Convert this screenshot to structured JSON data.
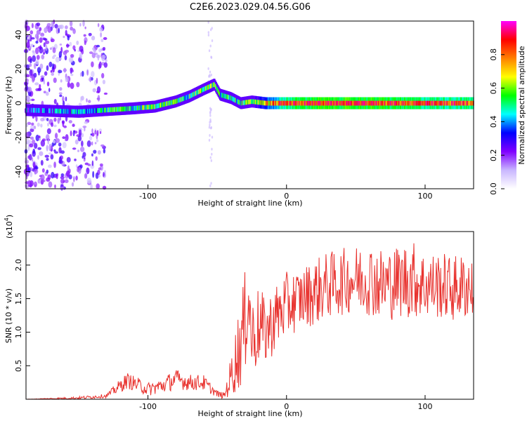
{
  "figure_title": "C2E6.2023.029.04.56.G06",
  "chart_data": [
    {
      "type": "heatmap",
      "xlabel": "Height of straight line (km)",
      "ylabel": "Frequency (Hz)",
      "xlim": [
        -188,
        135
      ],
      "ylim": [
        -50,
        48
      ],
      "x_ticks": [
        -100,
        0,
        100
      ],
      "x_tick_labels": [
        "-100",
        "0",
        "100"
      ],
      "y_ticks": [
        -40,
        -20,
        0,
        20,
        40
      ],
      "y_tick_labels": [
        "-40",
        "-20",
        "0",
        "20",
        "40"
      ],
      "colorbar": {
        "label": "Normalized spectral amplitude",
        "range": [
          0,
          1
        ],
        "ticks": [
          0.0,
          0.2,
          0.4,
          0.6,
          0.8
        ],
        "tick_labels": [
          "0.0",
          "0.2",
          "0.4",
          "0.6",
          "0.8"
        ],
        "colors": [
          "#ffffff",
          "#c9b6ff",
          "#8000ff",
          "#0000ff",
          "#00ffff",
          "#00ff00",
          "#ffff00",
          "#ff8000",
          "#ff0000",
          "#ff00ff"
        ]
      },
      "signal_track": {
        "x": [
          -188,
          -150,
          -130,
          -110,
          -95,
          -80,
          -70,
          -60,
          -52,
          -48,
          -40,
          -33,
          -25,
          -15,
          0,
          20,
          60,
          100,
          135
        ],
        "frequency": [
          -4,
          -5,
          -4,
          -3,
          -2,
          1,
          4,
          8,
          11,
          5,
          3,
          0,
          1,
          0,
          0,
          0,
          0,
          0,
          0
        ],
        "amplitude": [
          0.3,
          0.4,
          0.5,
          0.5,
          0.55,
          0.5,
          0.5,
          0.55,
          0.55,
          0.45,
          0.5,
          0.5,
          0.55,
          0.7,
          0.85,
          0.9,
          0.9,
          0.85,
          0.85
        ]
      },
      "grid": false
    },
    {
      "type": "line",
      "xlabel": "Height of straight line (km)",
      "ylabel": "SNR (10 * v/v)",
      "y_multiplier_label": "(x10",
      "y_multiplier_exponent": "4",
      "xlim": [
        -188,
        135
      ],
      "ylim": [
        0,
        2.5
      ],
      "x_ticks": [
        -100,
        0,
        100
      ],
      "x_tick_labels": [
        "-100",
        "0",
        "100"
      ],
      "y_ticks": [
        0.5,
        1.0,
        1.5,
        2.0
      ],
      "y_tick_labels": [
        "0.5",
        "1.0",
        "1.5",
        "2.0"
      ],
      "series": [
        {
          "color": "#e8322e",
          "x": [
            -188,
            -150,
            -130,
            -120,
            -115,
            -100,
            -90,
            -80,
            -70,
            -60,
            -50,
            -45,
            -40,
            -35,
            -30,
            -28,
            -25,
            -20,
            -15,
            -10,
            -5,
            0,
            10,
            20,
            30,
            40,
            50,
            60,
            70,
            80,
            90,
            100,
            110,
            120,
            135
          ],
          "values": [
            0.0,
            0.02,
            0.05,
            0.2,
            0.28,
            0.15,
            0.2,
            0.3,
            0.25,
            0.25,
            0.08,
            0.05,
            0.35,
            0.7,
            1.1,
            1.65,
            0.9,
            1.1,
            1.0,
            1.15,
            1.3,
            1.4,
            1.5,
            1.6,
            1.7,
            1.75,
            1.8,
            1.8,
            1.7,
            1.75,
            1.8,
            1.7,
            1.7,
            1.65,
            1.7
          ],
          "noise": [
            0.0,
            0.02,
            0.03,
            0.1,
            0.12,
            0.1,
            0.12,
            0.15,
            0.12,
            0.12,
            0.05,
            0.05,
            0.3,
            0.6,
            0.8,
            0.8,
            0.6,
            0.6,
            0.5,
            0.5,
            0.5,
            0.5,
            0.45,
            0.5,
            0.5,
            0.5,
            0.5,
            0.55,
            0.55,
            0.55,
            0.6,
            0.5,
            0.5,
            0.5,
            0.5
          ]
        }
      ],
      "grid": false
    }
  ]
}
